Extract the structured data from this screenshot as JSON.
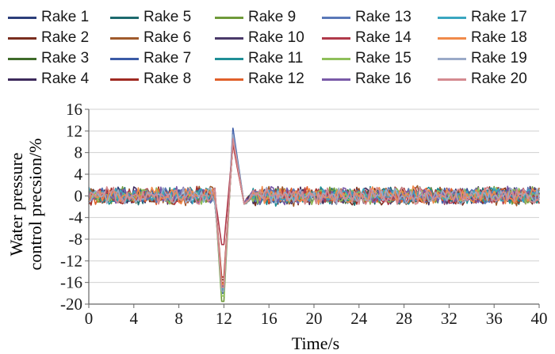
{
  "chart_data": {
    "type": "line",
    "title": "",
    "xlabel": "Time/s",
    "ylabel": "Water pressure control precsion/%",
    "ylabel_lines": [
      "Water pressure",
      "control precsion/%"
    ],
    "xlim": [
      0,
      40
    ],
    "ylim": [
      -20,
      16
    ],
    "xticks": [
      0,
      4,
      8,
      12,
      16,
      20,
      24,
      28,
      32,
      36,
      40
    ],
    "yticks": [
      -20,
      -16,
      -12,
      -8,
      -4,
      0,
      4,
      8,
      12,
      16
    ],
    "grid": "horizontal",
    "legend_position": "top",
    "legend_columns": 5,
    "series": [
      {
        "name": "Rake 1",
        "color": "#2c3e7a",
        "noise": 1.2,
        "dip": -17.0,
        "peak": 10.5
      },
      {
        "name": "Rake 2",
        "color": "#7a2e1f",
        "noise": 1.3,
        "dip": -15.5,
        "peak": 10.0
      },
      {
        "name": "Rake 3",
        "color": "#3f6b2a",
        "noise": 1.1,
        "dip": -17.5,
        "peak": 11.0
      },
      {
        "name": "Rake 4",
        "color": "#3d2a5c",
        "noise": 1.2,
        "dip": -16.5,
        "peak": 10.2
      },
      {
        "name": "Rake 5",
        "color": "#1d6a6e",
        "noise": 1.2,
        "dip": -17.0,
        "peak": 10.6
      },
      {
        "name": "Rake 6",
        "color": "#a05a2c",
        "noise": 1.4,
        "dip": -16.0,
        "peak": 10.4
      },
      {
        "name": "Rake 7",
        "color": "#3a5aa6",
        "noise": 1.1,
        "dip": -18.0,
        "peak": 12.5
      },
      {
        "name": "Rake 8",
        "color": "#a02a22",
        "noise": 1.3,
        "dip": -15.0,
        "peak": 10.1
      },
      {
        "name": "Rake 9",
        "color": "#6f9a3a",
        "noise": 1.2,
        "dip": -19.5,
        "peak": 11.5
      },
      {
        "name": "Rake 10",
        "color": "#4a3a6a",
        "noise": 1.1,
        "dip": -16.8,
        "peak": 10.8
      },
      {
        "name": "Rake 11",
        "color": "#1f8f96",
        "noise": 1.3,
        "dip": -17.2,
        "peak": 11.2
      },
      {
        "name": "Rake 12",
        "color": "#e0602a",
        "noise": 1.2,
        "dip": -16.2,
        "peak": 10.3
      },
      {
        "name": "Rake 13",
        "color": "#5a78b8",
        "noise": 1.1,
        "dip": -17.8,
        "peak": 11.8
      },
      {
        "name": "Rake 14",
        "color": "#b03a4a",
        "noise": 1.2,
        "dip": -9.0,
        "peak": 9.5
      },
      {
        "name": "Rake 15",
        "color": "#8fbf5a",
        "noise": 1.1,
        "dip": -18.5,
        "peak": 11.0
      },
      {
        "name": "Rake 16",
        "color": "#7a5aa8",
        "noise": 1.2,
        "dip": -16.6,
        "peak": 10.7
      },
      {
        "name": "Rake 17",
        "color": "#3aa6c0",
        "noise": 1.1,
        "dip": -17.1,
        "peak": 10.9
      },
      {
        "name": "Rake 18",
        "color": "#f08a4a",
        "noise": 1.3,
        "dip": -16.4,
        "peak": 10.5
      },
      {
        "name": "Rake 19",
        "color": "#9aaac8",
        "noise": 1.1,
        "dip": -17.6,
        "peak": 11.3
      },
      {
        "name": "Rake 20",
        "color": "#d48a90",
        "noise": 1.2,
        "dip": -16.9,
        "peak": 10.6
      }
    ],
    "colors": {
      "axis": "#666666",
      "grid": "#d0d0d0",
      "text": "#1a1a1a"
    }
  }
}
